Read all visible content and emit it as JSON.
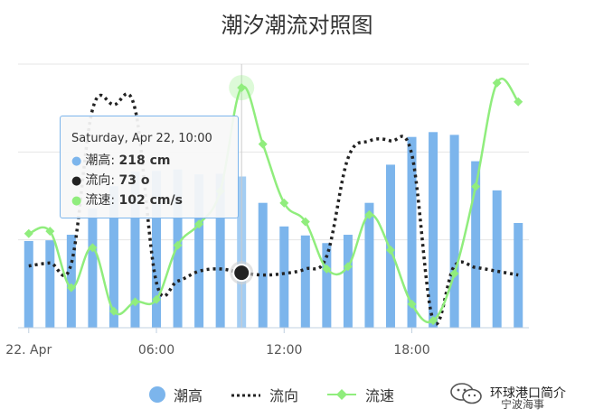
{
  "chart_data": {
    "type": "bar+line",
    "title": "潮汐潮流对照图",
    "x_tick_labels": [
      "22. Apr",
      "06:00",
      "12:00",
      "18:00"
    ],
    "x_tick_hours": [
      0,
      6,
      12,
      18
    ],
    "x_range_hours": [
      -0.5,
      23.5
    ],
    "grid": "horizontal",
    "legend_position": "bottom",
    "series": [
      {
        "name": "潮高",
        "type": "bar",
        "color": "#7cb5ec",
        "unit": "cm",
        "x_hours": [
          0,
          1,
          2,
          3,
          4,
          5,
          6,
          7,
          8,
          9,
          10,
          11,
          12,
          13,
          14,
          15,
          16,
          17,
          18,
          19,
          20,
          21,
          22,
          23
        ],
        "values": [
          125,
          126,
          134,
          172,
          204,
          225,
          226,
          228,
          221,
          222,
          218,
          180,
          146,
          133,
          122,
          134,
          180,
          235,
          275,
          282,
          278,
          240,
          198,
          151
        ],
        "ylim": [
          0,
          380
        ]
      },
      {
        "name": "流向",
        "type": "line",
        "style": "dotted",
        "color": "#222222",
        "unit": "o",
        "x_hours": [
          0,
          1,
          2,
          3,
          4,
          5,
          6,
          7,
          8,
          9,
          10,
          11,
          12,
          13,
          14,
          15,
          16,
          17,
          18,
          19,
          20,
          21,
          22,
          23
        ],
        "values": [
          82,
          86,
          85,
          290,
          296,
          290,
          60,
          62,
          75,
          78,
          73,
          70,
          72,
          78,
          95,
          225,
          248,
          248,
          230,
          10,
          82,
          80,
          75,
          70
        ],
        "ylim": [
          0,
          350
        ]
      },
      {
        "name": "流速",
        "type": "line",
        "color": "#90ed7d",
        "unit": "cm/s",
        "x_hours": [
          0,
          1,
          2,
          3,
          4,
          5,
          6,
          7,
          8,
          9,
          10,
          11,
          12,
          13,
          14,
          15,
          16,
          17,
          18,
          19,
          20,
          21,
          22,
          23
        ],
        "values": [
          40,
          41,
          17,
          34,
          7,
          11,
          12,
          35,
          44,
          58,
          102,
          78,
          53,
          45,
          25,
          26,
          48,
          33,
          10,
          3,
          23,
          60,
          104,
          96
        ],
        "ylim": [
          0,
          112
        ]
      }
    ],
    "tooltip": {
      "header": "Saturday, Apr 22, 10:00",
      "rows": [
        {
          "label": "潮高: ",
          "value": "218 cm",
          "color": "#7cb5ec"
        },
        {
          "label": "流向: ",
          "value": "73 o",
          "color": "#222222"
        },
        {
          "label": "流速: ",
          "value": "102 cm/s",
          "color": "#90ed7d"
        }
      ],
      "highlight_hour": 10
    },
    "legend": [
      {
        "name": "潮高",
        "marker": "circle",
        "color": "#7cb5ec"
      },
      {
        "name": "流向",
        "marker": "dotted-line",
        "color": "#222222"
      },
      {
        "name": "流速",
        "marker": "diamond-line",
        "color": "#90ed7d"
      }
    ]
  },
  "watermark": {
    "text": "环球港口简介",
    "subtext": "宁波海事"
  }
}
